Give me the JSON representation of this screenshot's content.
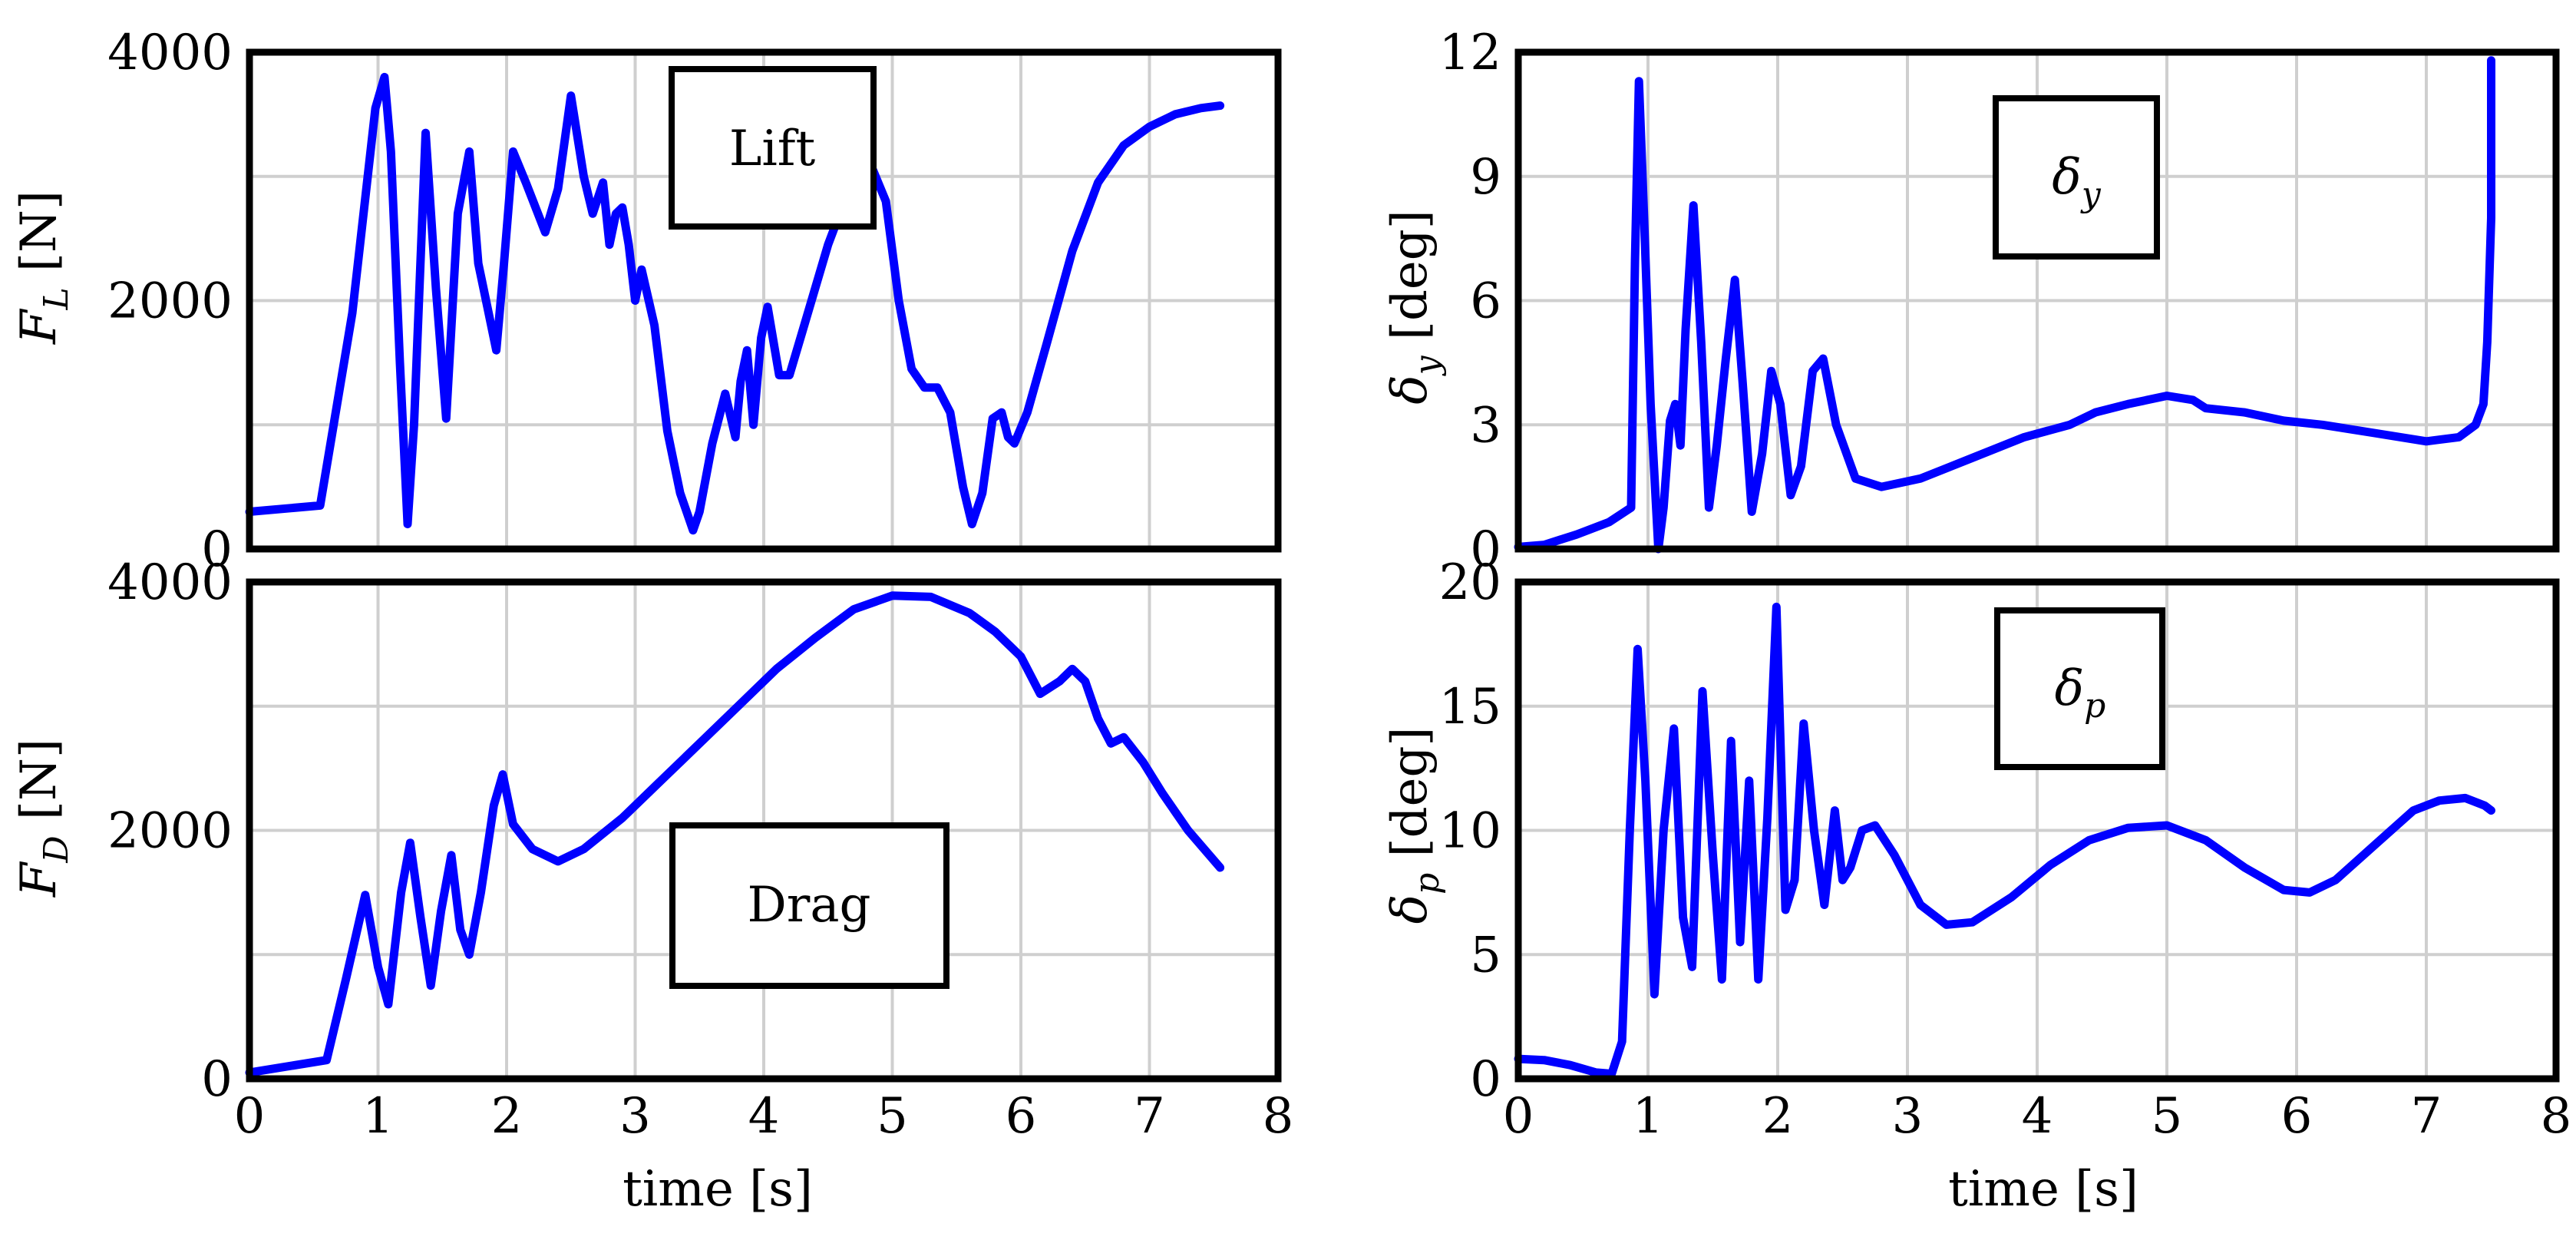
{
  "figure": {
    "line_color": "#0000ff",
    "grid_color": "#cfcfcf"
  },
  "chart_data": [
    {
      "id": "lift",
      "type": "line",
      "title": "",
      "legend": "Lift",
      "ylabel_main": "F",
      "ylabel_sub": "L",
      "ylabel_unit": "[N]",
      "xlabel": "",
      "xlim": [
        0,
        8
      ],
      "ylim": [
        0,
        4000
      ],
      "xticks": [
        "0",
        "1",
        "2",
        "3",
        "4",
        "5",
        "6",
        "7",
        "8"
      ],
      "xtick_values": [
        0,
        1,
        2,
        3,
        4,
        5,
        6,
        7,
        8
      ],
      "show_xtick_labels": false,
      "yticks": [
        "0",
        "2000",
        "4000"
      ],
      "ytick_values": [
        0,
        2000,
        4000
      ],
      "x": [
        0,
        0.55,
        0.8,
        0.98,
        1.05,
        1.1,
        1.17,
        1.23,
        1.28,
        1.37,
        1.45,
        1.53,
        1.62,
        1.71,
        1.78,
        1.85,
        1.92,
        1.98,
        2.05,
        2.15,
        2.3,
        2.4,
        2.5,
        2.6,
        2.67,
        2.75,
        2.8,
        2.85,
        2.9,
        2.95,
        3.0,
        3.05,
        3.15,
        3.25,
        3.35,
        3.45,
        3.5,
        3.6,
        3.7,
        3.78,
        3.82,
        3.87,
        3.92,
        3.98,
        4.03,
        4.12,
        4.2,
        4.3,
        4.5,
        4.7,
        4.85,
        4.95,
        5.05,
        5.15,
        5.25,
        5.35,
        5.45,
        5.55,
        5.62,
        5.7,
        5.78,
        5.85,
        5.9,
        5.95,
        6.05,
        6.2,
        6.4,
        6.6,
        6.8,
        7.0,
        7.2,
        7.4,
        7.55
      ],
      "y": [
        300,
        350,
        1900,
        3550,
        3800,
        3200,
        1500,
        200,
        1000,
        3350,
        2100,
        1050,
        2700,
        3200,
        2300,
        1950,
        1600,
        2300,
        3200,
        2950,
        2550,
        2900,
        3650,
        3000,
        2700,
        2950,
        2450,
        2700,
        2750,
        2450,
        2000,
        2250,
        1800,
        950,
        450,
        150,
        300,
        850,
        1250,
        900,
        1350,
        1600,
        1000,
        1700,
        1950,
        1400,
        1400,
        1750,
        2450,
        3000,
        3050,
        2800,
        2000,
        1450,
        1300,
        1300,
        1100,
        500,
        200,
        450,
        1050,
        1100,
        900,
        850,
        1100,
        1650,
        2400,
        2950,
        3250,
        3400,
        3500,
        3550,
        3570
      ]
    },
    {
      "id": "yaw",
      "type": "line",
      "title": "",
      "legend": "δy",
      "legend_main": "δ",
      "legend_sub": "y",
      "ylabel_main": "δ",
      "ylabel_sub": "y",
      "ylabel_unit": "[deg]",
      "xlabel": "",
      "xlim": [
        0,
        8
      ],
      "ylim": [
        0,
        12
      ],
      "xticks": [
        "0",
        "1",
        "2",
        "3",
        "4",
        "5",
        "6",
        "7",
        "8"
      ],
      "xtick_values": [
        0,
        1,
        2,
        3,
        4,
        5,
        6,
        7,
        8
      ],
      "show_xtick_labels": false,
      "yticks": [
        "0",
        "3",
        "6",
        "9",
        "12"
      ],
      "ytick_values": [
        0,
        3,
        6,
        9,
        12
      ],
      "x": [
        0,
        0.2,
        0.45,
        0.7,
        0.87,
        0.9,
        0.93,
        0.97,
        1.02,
        1.08,
        1.12,
        1.17,
        1.21,
        1.25,
        1.29,
        1.35,
        1.41,
        1.47,
        1.53,
        1.6,
        1.67,
        1.73,
        1.8,
        1.88,
        1.95,
        2.02,
        2.1,
        2.18,
        2.27,
        2.35,
        2.45,
        2.6,
        2.8,
        3.1,
        3.5,
        3.9,
        4.25,
        4.45,
        4.7,
        5.0,
        5.2,
        5.3,
        5.6,
        5.9,
        6.2,
        6.6,
        7.0,
        7.25,
        7.38,
        7.44,
        7.47,
        7.5,
        7.5
      ],
      "y": [
        0.05,
        0.1,
        0.35,
        0.65,
        1.0,
        7.0,
        11.3,
        8.0,
        3.5,
        0.0,
        1.0,
        3.1,
        3.5,
        2.5,
        5.3,
        8.3,
        5.0,
        1.0,
        2.5,
        4.6,
        6.5,
        4.0,
        0.9,
        2.3,
        4.3,
        3.5,
        1.3,
        2.0,
        4.3,
        4.6,
        3.0,
        1.7,
        1.5,
        1.7,
        2.2,
        2.7,
        3.0,
        3.3,
        3.5,
        3.7,
        3.6,
        3.4,
        3.3,
        3.1,
        3.0,
        2.8,
        2.6,
        2.7,
        3.0,
        3.5,
        5.0,
        8.0,
        11.8
      ]
    },
    {
      "id": "drag",
      "type": "line",
      "title": "",
      "legend": "Drag",
      "ylabel_main": "F",
      "ylabel_sub": "D",
      "ylabel_unit": "[N]",
      "xlabel": "time [s]",
      "xlim": [
        0,
        8
      ],
      "ylim": [
        0,
        4000
      ],
      "xticks": [
        "0",
        "1",
        "2",
        "3",
        "4",
        "5",
        "6",
        "7",
        "8"
      ],
      "xtick_values": [
        0,
        1,
        2,
        3,
        4,
        5,
        6,
        7,
        8
      ],
      "show_xtick_labels": true,
      "yticks": [
        "0",
        "2000",
        "4000"
      ],
      "ytick_values": [
        0,
        2000,
        4000
      ],
      "x": [
        0,
        0.6,
        0.75,
        0.9,
        1.0,
        1.08,
        1.18,
        1.25,
        1.33,
        1.41,
        1.49,
        1.57,
        1.64,
        1.71,
        1.8,
        1.9,
        1.97,
        2.05,
        2.2,
        2.4,
        2.6,
        2.9,
        3.2,
        3.5,
        3.8,
        4.1,
        4.4,
        4.7,
        5.0,
        5.3,
        5.6,
        5.8,
        6.0,
        6.15,
        6.3,
        6.4,
        6.5,
        6.6,
        6.7,
        6.8,
        6.95,
        7.1,
        7.3,
        7.55
      ],
      "y": [
        50,
        150,
        800,
        1480,
        900,
        600,
        1500,
        1900,
        1300,
        750,
        1350,
        1800,
        1200,
        1000,
        1500,
        2200,
        2450,
        2050,
        1850,
        1750,
        1850,
        2100,
        2400,
        2700,
        3000,
        3300,
        3550,
        3780,
        3890,
        3880,
        3750,
        3600,
        3400,
        3100,
        3200,
        3300,
        3200,
        2900,
        2700,
        2750,
        2550,
        2300,
        2000,
        1700
      ]
    },
    {
      "id": "pitch",
      "type": "line",
      "title": "",
      "legend": "δp",
      "legend_main": "δ",
      "legend_sub": "p",
      "ylabel_main": "δ",
      "ylabel_sub": "p",
      "ylabel_unit": "[deg]",
      "xlabel": "time [s]",
      "xlim": [
        0,
        8
      ],
      "ylim": [
        0,
        20
      ],
      "xticks": [
        "0",
        "1",
        "2",
        "3",
        "4",
        "5",
        "6",
        "7",
        "8"
      ],
      "xtick_values": [
        0,
        1,
        2,
        3,
        4,
        5,
        6,
        7,
        8
      ],
      "show_xtick_labels": true,
      "yticks": [
        "0",
        "5",
        "10",
        "15",
        "20"
      ],
      "ytick_values": [
        0,
        5,
        10,
        15,
        20
      ],
      "x": [
        0,
        0.2,
        0.4,
        0.6,
        0.72,
        0.8,
        0.86,
        0.92,
        0.98,
        1.05,
        1.12,
        1.2,
        1.27,
        1.34,
        1.42,
        1.5,
        1.57,
        1.64,
        1.71,
        1.78,
        1.85,
        1.92,
        1.99,
        2.06,
        2.13,
        2.2,
        2.28,
        2.36,
        2.44,
        2.5,
        2.56,
        2.65,
        2.75,
        2.9,
        3.1,
        3.3,
        3.5,
        3.8,
        4.1,
        4.4,
        4.7,
        5.0,
        5.3,
        5.6,
        5.9,
        6.1,
        6.3,
        6.6,
        6.9,
        7.1,
        7.3,
        7.45,
        7.5
      ],
      "y": [
        0.8,
        0.75,
        0.55,
        0.25,
        0.2,
        1.5,
        10.0,
        17.3,
        12.0,
        3.4,
        10.0,
        14.1,
        6.5,
        4.5,
        15.6,
        9.0,
        4.0,
        13.6,
        5.5,
        12.0,
        4.0,
        10.5,
        19.0,
        6.8,
        8.0,
        14.3,
        10.0,
        7.0,
        10.8,
        8.0,
        8.5,
        10.0,
        10.2,
        9.0,
        7.0,
        6.2,
        6.3,
        7.3,
        8.6,
        9.6,
        10.1,
        10.2,
        9.6,
        8.5,
        7.6,
        7.5,
        8.0,
        9.4,
        10.8,
        11.2,
        11.3,
        11.0,
        10.8
      ]
    }
  ]
}
